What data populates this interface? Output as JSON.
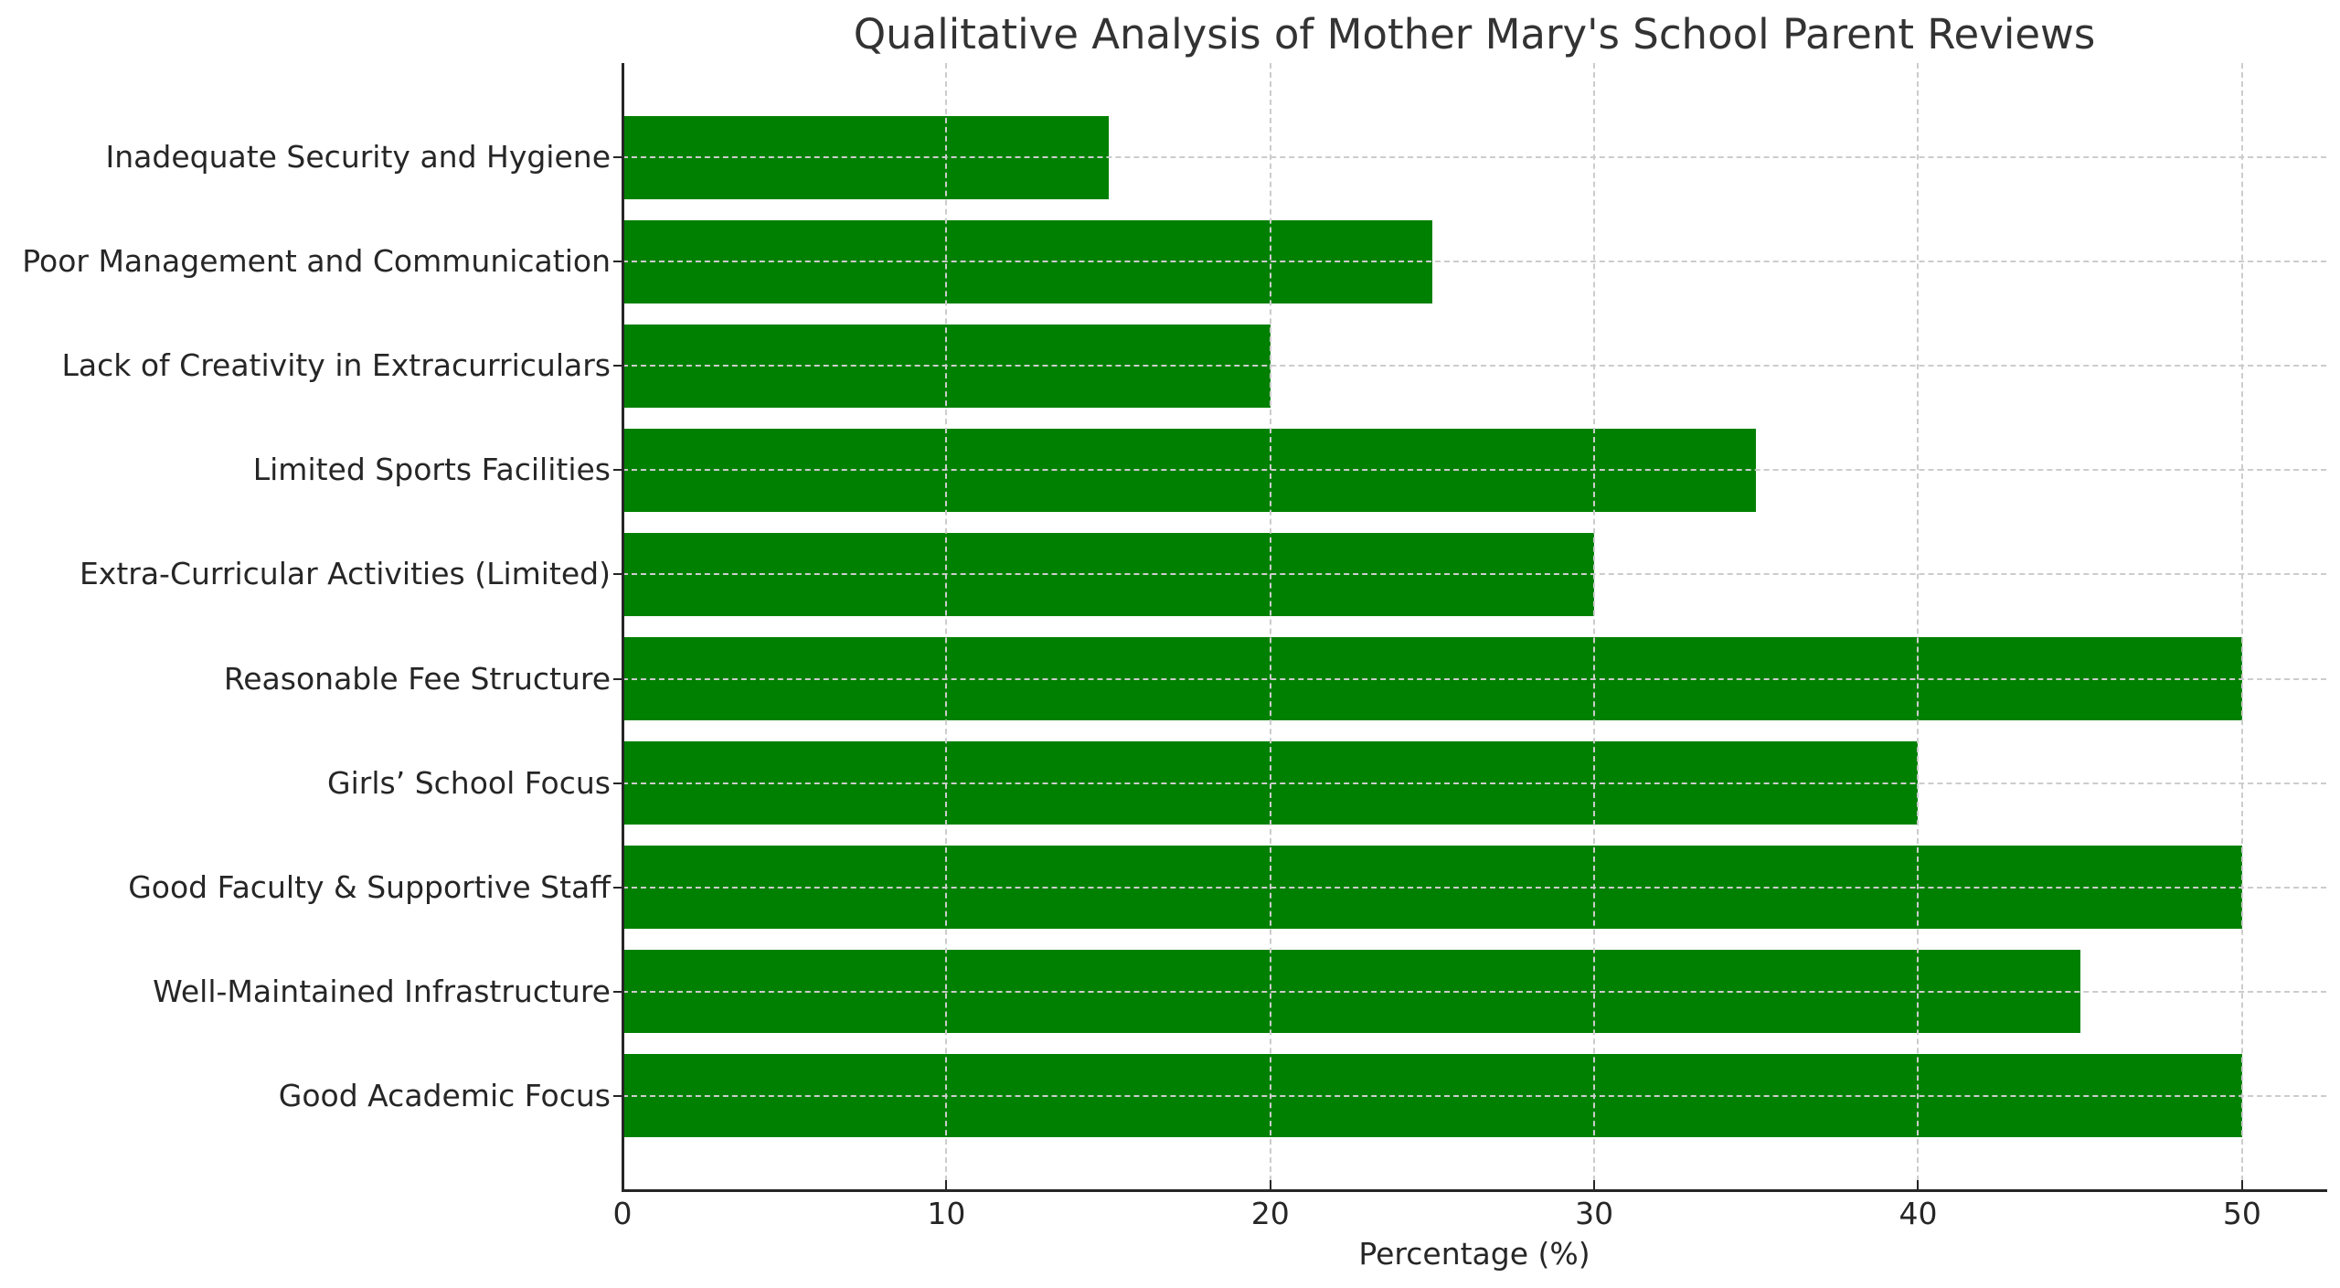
{
  "chart_data": {
    "type": "bar",
    "orientation": "horizontal",
    "title": "Qualitative Analysis of Mother Mary's School Parent Reviews",
    "xlabel": "Percentage (%)",
    "ylabel": "",
    "categories": [
      "Good Academic Focus",
      "Well-Maintained Infrastructure",
      "Good Faculty & Supportive Staff",
      "Girls’ School Focus",
      "Reasonable Fee Structure",
      "Extra-Curricular Activities (Limited)",
      "Limited Sports Facilities",
      "Lack of Creativity in Extracurriculars",
      "Poor Management and Communication",
      "Inadequate Security and Hygiene"
    ],
    "values": [
      50,
      45,
      50,
      40,
      50,
      30,
      35,
      20,
      25,
      15
    ],
    "xlim": [
      0,
      52.6
    ],
    "xticks": [
      0,
      10,
      20,
      30,
      40,
      50
    ],
    "xtick_labels": [
      "0",
      "10",
      "20",
      "30",
      "40",
      "50"
    ],
    "grid": true,
    "grid_style": "dashed",
    "legend": null,
    "bar_color": "#008000"
  },
  "colors": {
    "bar": "#008000",
    "grid": "#cccccc",
    "axis": "#262626",
    "title": "#333333"
  }
}
